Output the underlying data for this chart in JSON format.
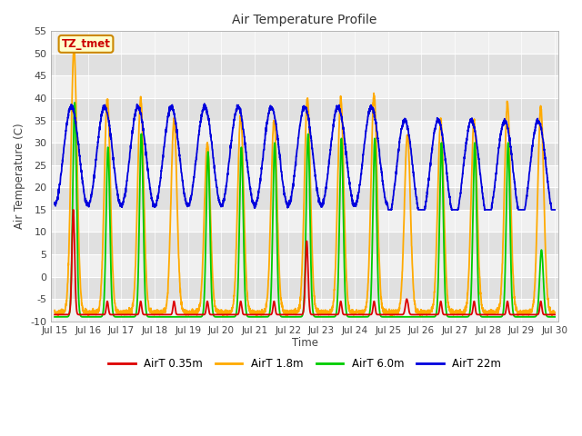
{
  "title": "Air Temperature Profile",
  "xlabel": "Time",
  "ylabel": "Air Temperature (C)",
  "ylim": [
    -10,
    55
  ],
  "ytick_values": [
    -10,
    -5,
    0,
    5,
    10,
    15,
    20,
    25,
    30,
    35,
    40,
    45,
    50,
    55
  ],
  "xtick_labels": [
    "Jul 15",
    "Jul 16",
    "Jul 17",
    "Jul 18",
    "Jul 19",
    "Jul 20",
    "Jul 21",
    "Jul 22",
    "Jul 23",
    "Jul 24",
    "Jul 25",
    "Jul 26",
    "Jul 27",
    "Jul 28",
    "Jul 29",
    "Jul 30"
  ],
  "colors": {
    "AirT_035m": "#dd0000",
    "AirT_18m": "#ffaa00",
    "AirT_60m": "#00cc00",
    "AirT_22m": "#0000dd"
  },
  "annotation_text": "TZ_tmet",
  "annotation_color": "#cc0000",
  "annotation_bg": "#ffffcc",
  "annotation_border": "#cc8800",
  "fig_bg": "#ffffff",
  "plot_bg_light": "#f0f0f0",
  "plot_bg_dark": "#e0e0e0"
}
